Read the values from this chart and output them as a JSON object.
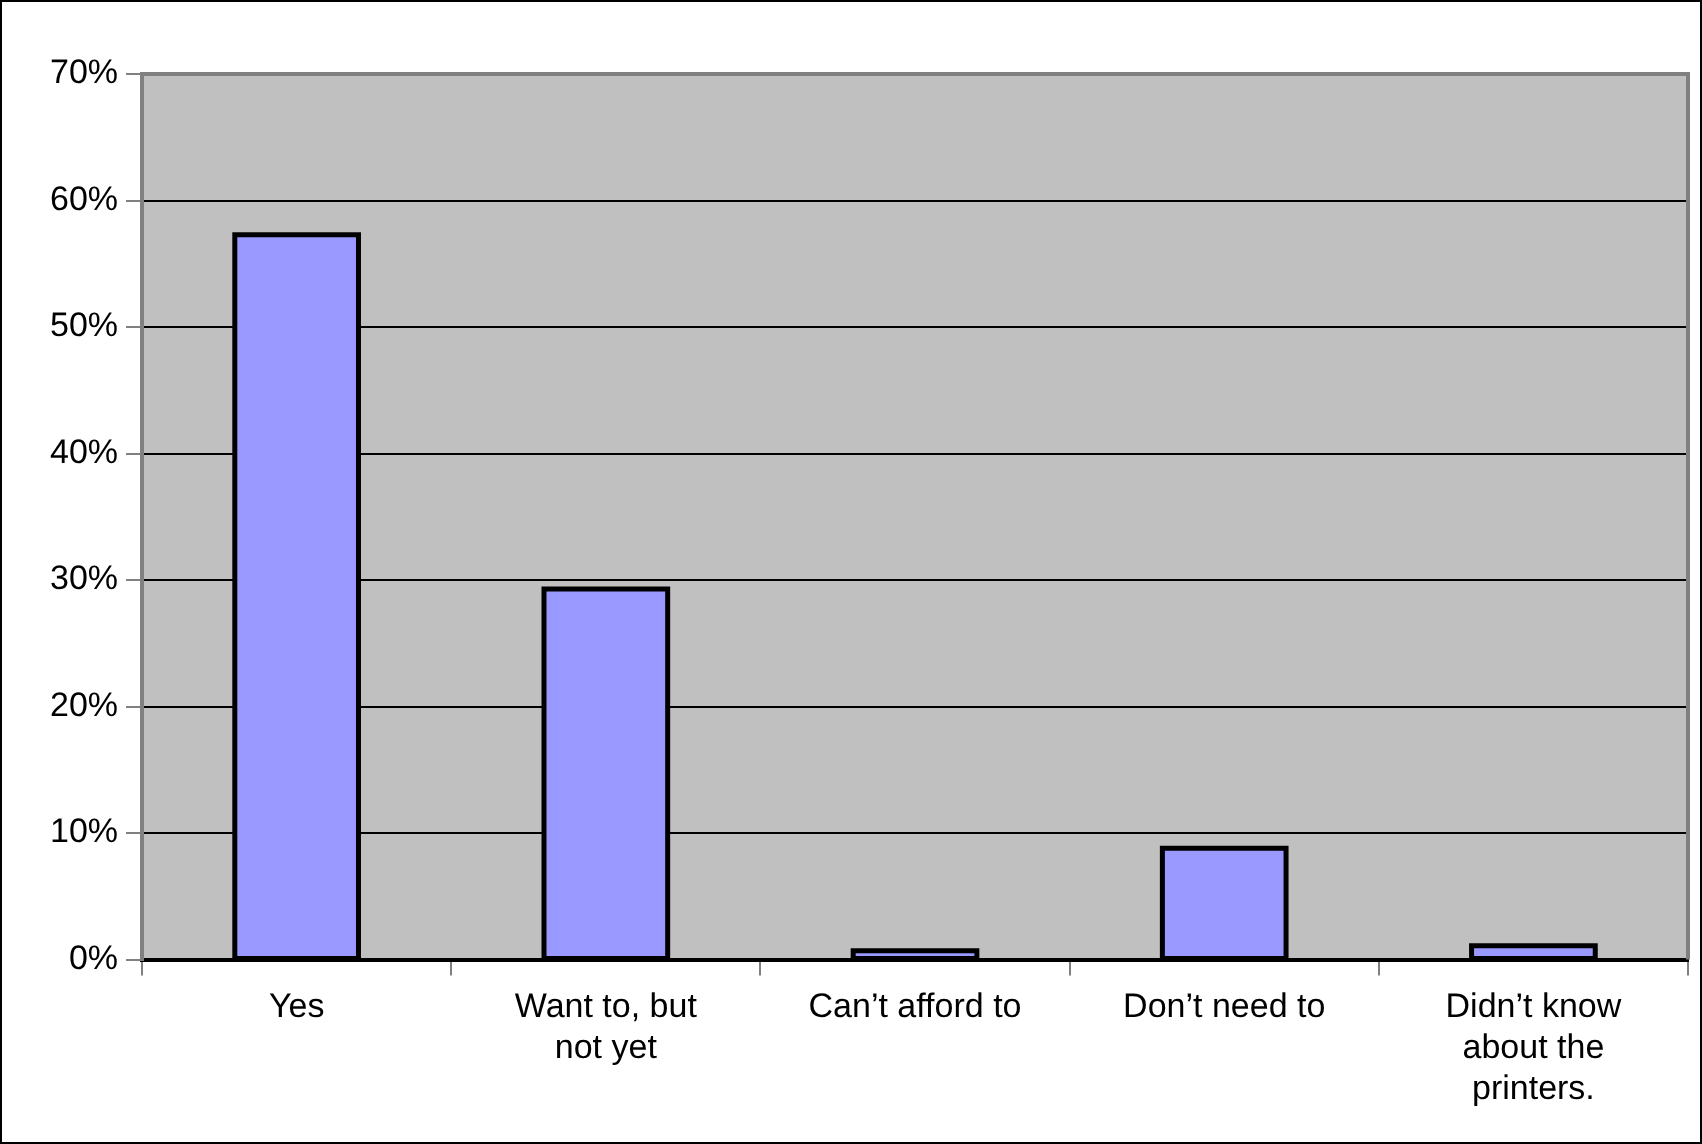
{
  "chart_data": {
    "type": "bar",
    "categories": [
      "Yes",
      "Want to, but not yet",
      "Can’t afford to",
      "Don’t need to",
      "Didn’t know about the printers."
    ],
    "values": [
      57.3,
      29.3,
      0.7,
      8.8,
      1.1
    ],
    "color": "#9999ff",
    "ylim": [
      0,
      70
    ],
    "yticks": [
      {
        "value": 0,
        "label": "0%"
      },
      {
        "value": 10,
        "label": "10%"
      },
      {
        "value": 20,
        "label": "20%"
      },
      {
        "value": 30,
        "label": "30%"
      },
      {
        "value": 40,
        "label": "40%"
      },
      {
        "value": 50,
        "label": "50%"
      },
      {
        "value": 60,
        "label": "60%"
      },
      {
        "value": 70,
        "label": "70%"
      }
    ],
    "grid": "y",
    "legend": false
  }
}
